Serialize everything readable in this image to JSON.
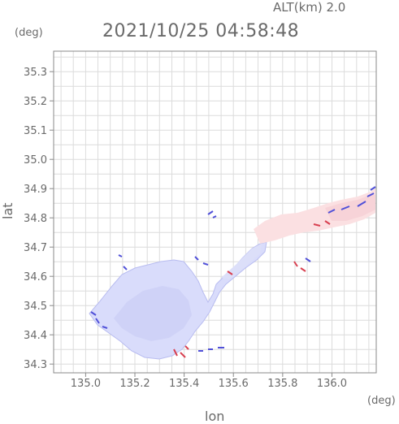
{
  "header": {
    "altitude": "ALT(km) 2.0",
    "timestamp": "2021/10/25 04:58:48"
  },
  "axes": {
    "y_unit": "(deg)",
    "x_unit": "(deg)",
    "x_label": "lon",
    "y_label": "lat",
    "x_ticks": [
      "135.0",
      "135.2",
      "135.4",
      "135.6",
      "135.8",
      "136.0"
    ],
    "y_ticks": [
      "34.3",
      "34.4",
      "34.5",
      "34.6",
      "34.7",
      "34.8",
      "34.9",
      "35.0",
      "35.1",
      "35.2",
      "35.3"
    ],
    "x_range": [
      134.87,
      136.18
    ],
    "y_range": [
      34.27,
      35.37
    ]
  },
  "colors": {
    "frame": "#8a8a8a",
    "grid": "#dcdcdc",
    "text": "#6a6a6a",
    "approach": "#d9dcfb",
    "approach_edge": "#5050d8",
    "recede": "#fbd9dc",
    "recede_edge": "#d84050"
  }
}
